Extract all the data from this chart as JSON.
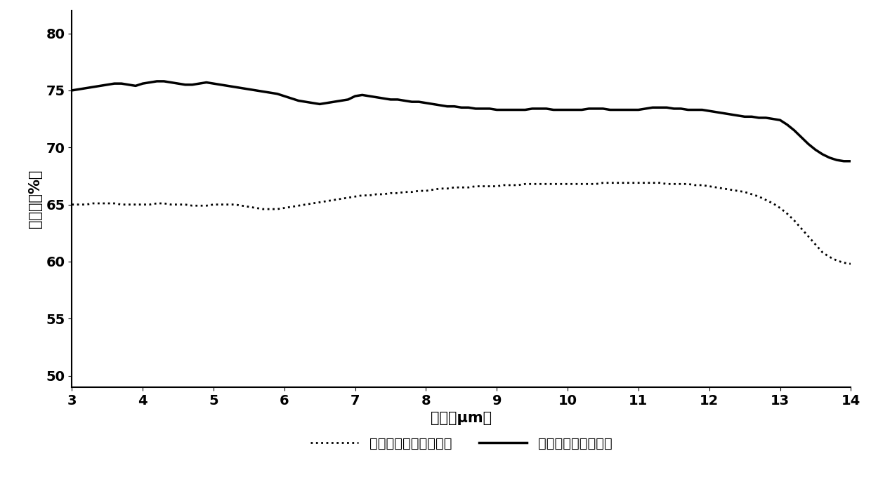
{
  "title": "",
  "xlabel": "波长（μm）",
  "ylabel": "透过率（%）",
  "xlim": [
    3,
    14
  ],
  "ylim": [
    49,
    82
  ],
  "xticks": [
    3,
    4,
    5,
    6,
    7,
    8,
    9,
    10,
    11,
    12,
    13,
    14
  ],
  "yticks": [
    50,
    55,
    60,
    65,
    70,
    75,
    80
  ],
  "solid_x": [
    3.0,
    3.1,
    3.2,
    3.3,
    3.4,
    3.5,
    3.6,
    3.7,
    3.8,
    3.9,
    4.0,
    4.1,
    4.2,
    4.3,
    4.4,
    4.5,
    4.6,
    4.7,
    4.8,
    4.9,
    5.0,
    5.1,
    5.2,
    5.3,
    5.4,
    5.5,
    5.6,
    5.7,
    5.8,
    5.9,
    6.0,
    6.1,
    6.2,
    6.3,
    6.4,
    6.5,
    6.6,
    6.7,
    6.8,
    6.9,
    7.0,
    7.1,
    7.2,
    7.3,
    7.4,
    7.5,
    7.6,
    7.7,
    7.8,
    7.9,
    8.0,
    8.1,
    8.2,
    8.3,
    8.4,
    8.5,
    8.6,
    8.7,
    8.8,
    8.9,
    9.0,
    9.1,
    9.2,
    9.3,
    9.4,
    9.5,
    9.6,
    9.7,
    9.8,
    9.9,
    10.0,
    10.1,
    10.2,
    10.3,
    10.4,
    10.5,
    10.6,
    10.7,
    10.8,
    10.9,
    11.0,
    11.1,
    11.2,
    11.3,
    11.4,
    11.5,
    11.6,
    11.7,
    11.8,
    11.9,
    12.0,
    12.1,
    12.2,
    12.3,
    12.4,
    12.5,
    12.6,
    12.7,
    12.8,
    12.9,
    13.0,
    13.1,
    13.2,
    13.3,
    13.4,
    13.5,
    13.6,
    13.7,
    13.8,
    13.9,
    14.0
  ],
  "solid_y": [
    75.0,
    75.1,
    75.2,
    75.3,
    75.4,
    75.5,
    75.6,
    75.6,
    75.5,
    75.4,
    75.6,
    75.7,
    75.8,
    75.8,
    75.7,
    75.6,
    75.5,
    75.5,
    75.6,
    75.7,
    75.6,
    75.5,
    75.4,
    75.3,
    75.2,
    75.1,
    75.0,
    74.9,
    74.8,
    74.7,
    74.5,
    74.3,
    74.1,
    74.0,
    73.9,
    73.8,
    73.9,
    74.0,
    74.1,
    74.2,
    74.5,
    74.6,
    74.5,
    74.4,
    74.3,
    74.2,
    74.2,
    74.1,
    74.0,
    74.0,
    73.9,
    73.8,
    73.7,
    73.6,
    73.6,
    73.5,
    73.5,
    73.4,
    73.4,
    73.4,
    73.3,
    73.3,
    73.3,
    73.3,
    73.3,
    73.4,
    73.4,
    73.4,
    73.3,
    73.3,
    73.3,
    73.3,
    73.3,
    73.4,
    73.4,
    73.4,
    73.3,
    73.3,
    73.3,
    73.3,
    73.3,
    73.4,
    73.5,
    73.5,
    73.5,
    73.4,
    73.4,
    73.3,
    73.3,
    73.3,
    73.2,
    73.1,
    73.0,
    72.9,
    72.8,
    72.7,
    72.7,
    72.6,
    72.6,
    72.5,
    72.4,
    72.0,
    71.5,
    70.9,
    70.3,
    69.8,
    69.4,
    69.1,
    68.9,
    68.8,
    68.8
  ],
  "dotted_x": [
    3.0,
    3.1,
    3.2,
    3.3,
    3.4,
    3.5,
    3.6,
    3.7,
    3.8,
    3.9,
    4.0,
    4.1,
    4.2,
    4.3,
    4.4,
    4.5,
    4.6,
    4.7,
    4.8,
    4.9,
    5.0,
    5.1,
    5.2,
    5.3,
    5.4,
    5.5,
    5.6,
    5.7,
    5.8,
    5.9,
    6.0,
    6.1,
    6.2,
    6.3,
    6.4,
    6.5,
    6.6,
    6.7,
    6.8,
    6.9,
    7.0,
    7.1,
    7.2,
    7.3,
    7.4,
    7.5,
    7.6,
    7.7,
    7.8,
    7.9,
    8.0,
    8.1,
    8.2,
    8.3,
    8.4,
    8.5,
    8.6,
    8.7,
    8.8,
    8.9,
    9.0,
    9.1,
    9.2,
    9.3,
    9.4,
    9.5,
    9.6,
    9.7,
    9.8,
    9.9,
    10.0,
    10.1,
    10.2,
    10.3,
    10.4,
    10.5,
    10.6,
    10.7,
    10.8,
    10.9,
    11.0,
    11.1,
    11.2,
    11.3,
    11.4,
    11.5,
    11.6,
    11.7,
    11.8,
    11.9,
    12.0,
    12.1,
    12.2,
    12.3,
    12.4,
    12.5,
    12.6,
    12.7,
    12.8,
    12.9,
    13.0,
    13.1,
    13.2,
    13.3,
    13.4,
    13.5,
    13.6,
    13.7,
    13.8,
    13.9,
    14.0
  ],
  "dotted_y": [
    65.0,
    65.0,
    65.0,
    65.1,
    65.1,
    65.1,
    65.1,
    65.0,
    65.0,
    65.0,
    65.0,
    65.0,
    65.1,
    65.1,
    65.0,
    65.0,
    65.0,
    64.9,
    64.9,
    64.9,
    65.0,
    65.0,
    65.0,
    65.0,
    64.9,
    64.8,
    64.7,
    64.6,
    64.6,
    64.6,
    64.7,
    64.8,
    64.9,
    65.0,
    65.1,
    65.2,
    65.3,
    65.4,
    65.5,
    65.6,
    65.7,
    65.8,
    65.8,
    65.9,
    65.9,
    66.0,
    66.0,
    66.1,
    66.1,
    66.2,
    66.2,
    66.3,
    66.4,
    66.4,
    66.5,
    66.5,
    66.5,
    66.6,
    66.6,
    66.6,
    66.6,
    66.7,
    66.7,
    66.7,
    66.8,
    66.8,
    66.8,
    66.8,
    66.8,
    66.8,
    66.8,
    66.8,
    66.8,
    66.8,
    66.8,
    66.9,
    66.9,
    66.9,
    66.9,
    66.9,
    66.9,
    66.9,
    66.9,
    66.9,
    66.8,
    66.8,
    66.8,
    66.8,
    66.7,
    66.7,
    66.6,
    66.5,
    66.4,
    66.3,
    66.2,
    66.1,
    65.9,
    65.7,
    65.4,
    65.1,
    64.7,
    64.2,
    63.6,
    62.9,
    62.2,
    61.5,
    60.8,
    60.4,
    60.1,
    59.9,
    59.8
  ],
  "solid_color": "#000000",
  "dotted_color": "#000000",
  "solid_linewidth": 2.5,
  "dotted_linewidth": 2.0,
  "solid_label": "单面微纳结构透过率",
  "dotted_label": "裸硫系玻璃基底透过率",
  "legend_fontsize": 14,
  "axis_fontsize": 15,
  "tick_fontsize": 14,
  "background_color": "#ffffff"
}
